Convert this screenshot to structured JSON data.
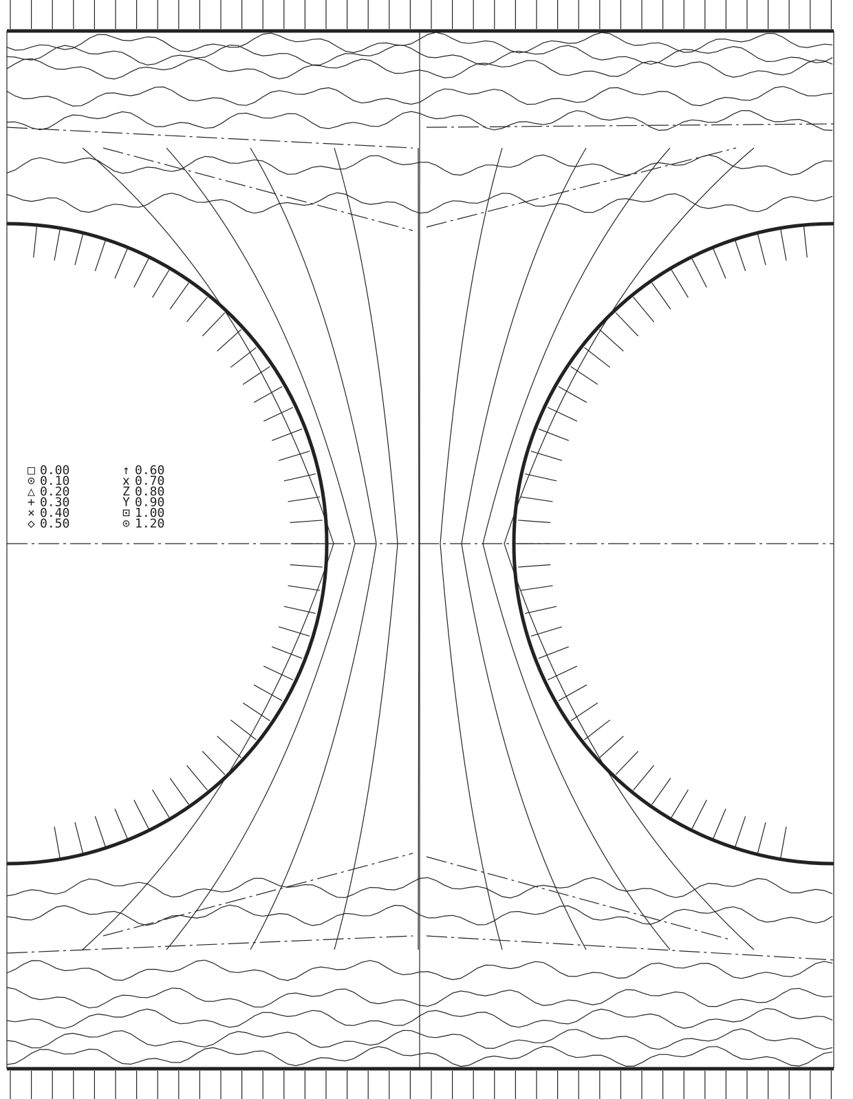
{
  "legend": {
    "labels": [
      "0.00",
      "0.10",
      "0.20",
      "0.30",
      "0.40",
      "0.50",
      "0.60",
      "0.70",
      "0.80",
      "0.90",
      "1.00",
      "1.20"
    ]
  }
}
